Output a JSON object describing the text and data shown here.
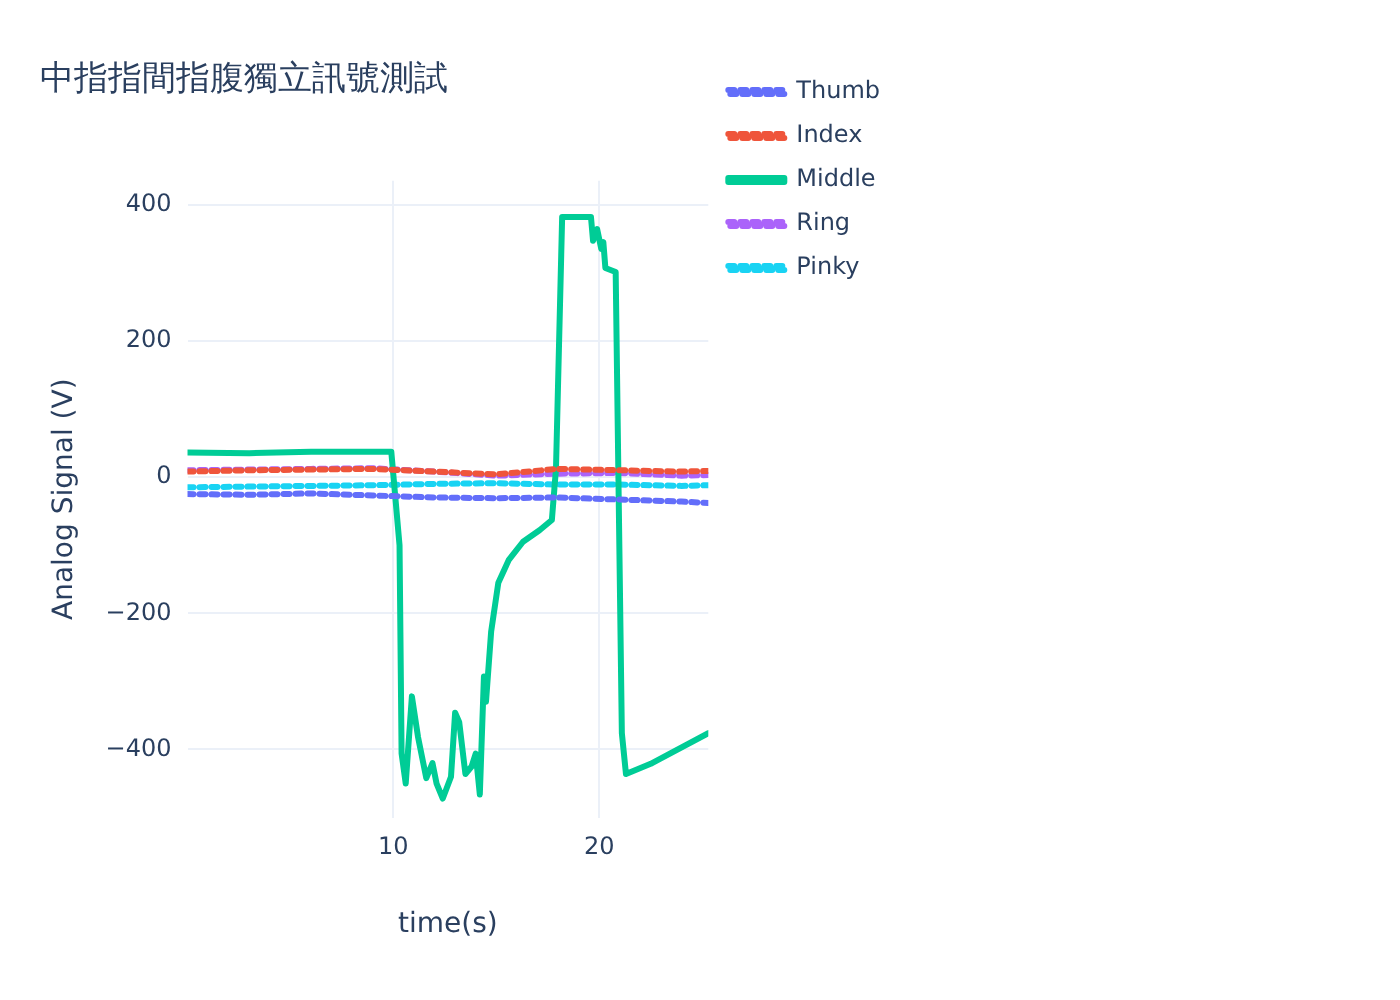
{
  "chart_data": {
    "type": "line",
    "title": "中指指間指腹獨立訊號測試",
    "xlabel": "time(s)",
    "ylabel": "Analog Signal (V)",
    "xlim": [
      0,
      25.3
    ],
    "ylim": [
      -500,
      435
    ],
    "xticks": [
      10,
      20
    ],
    "yticks": [
      -400,
      -200,
      0,
      200,
      400
    ],
    "grid": true,
    "legend": "top right",
    "marker": "none",
    "series": [
      {
        "name": "Thumb",
        "color": "#636efa",
        "line_style": "dotted",
        "x": [
          0,
          3,
          6,
          9,
          12,
          15,
          18,
          21,
          24,
          25.3
        ],
        "values": [
          -25,
          -26,
          -24,
          -27,
          -30,
          -31,
          -30,
          -33,
          -36,
          -38
        ]
      },
      {
        "name": "Index",
        "color": "#ef553b",
        "line_style": "dotted",
        "x": [
          0,
          3,
          6,
          9,
          12,
          15,
          18,
          21,
          24,
          25.3
        ],
        "values": [
          8,
          10,
          11,
          12,
          8,
          4,
          12,
          10,
          8,
          9
        ]
      },
      {
        "name": "Middle",
        "color": "#00cc96",
        "line_style": "solid",
        "x": [
          0,
          3,
          6,
          9.9,
          10.3,
          10.4,
          10.6,
          10.9,
          11.2,
          11.6,
          11.9,
          12.1,
          12.4,
          12.8,
          13.0,
          13.2,
          13.5,
          13.8,
          14.0,
          14.2,
          14.4,
          14.5,
          14.75,
          15.1,
          15.6,
          16.3,
          17.1,
          17.7,
          17.9,
          18.2,
          19.6,
          19.7,
          19.9,
          20.1,
          20.2,
          20.3,
          20.8,
          21.1,
          21.3,
          22.5,
          25.3
        ],
        "values": [
          36,
          35,
          37,
          37,
          -100,
          -406,
          -450,
          -322,
          -382,
          -442,
          -420,
          -450,
          -472,
          -440,
          -346,
          -360,
          -436,
          -425,
          -406,
          -466,
          -293,
          -330,
          -227,
          -155,
          -122,
          -95,
          -78,
          -63,
          12,
          382,
          382,
          347,
          364,
          335,
          345,
          307,
          301,
          -376,
          -436,
          -421,
          -376
        ]
      },
      {
        "name": "Ring",
        "color": "#ab63fa",
        "line_style": "dotted",
        "x": [
          0,
          3,
          6,
          9,
          12,
          15,
          18,
          21,
          24,
          25.3
        ],
        "values": [
          10,
          11,
          12,
          13,
          8,
          2,
          5,
          6,
          2,
          3
        ]
      },
      {
        "name": "Pinky",
        "color": "#19d3f3",
        "line_style": "dotted",
        "x": [
          0,
          3,
          6,
          9,
          12,
          15,
          18,
          21,
          24,
          25.3
        ],
        "values": [
          -15,
          -14,
          -13,
          -12,
          -10,
          -9,
          -11,
          -11,
          -13,
          -12
        ]
      }
    ]
  }
}
